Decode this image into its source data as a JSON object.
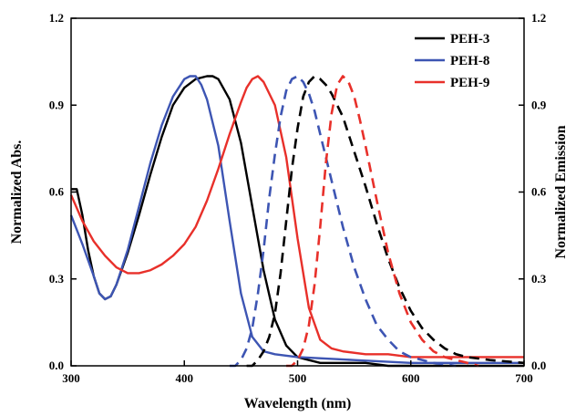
{
  "chart_data": {
    "type": "line",
    "xlabel": "Wavelength (nm)",
    "ylabel_left": "Normalized Abs.",
    "ylabel_right": "Normalized Emission",
    "xlim": [
      300,
      700
    ],
    "ylim": [
      0,
      1.2
    ],
    "xticks": [
      "300",
      "400",
      "500",
      "600",
      "700"
    ],
    "yticks": [
      "0.0",
      "0.3",
      "0.6",
      "0.9",
      "1.2"
    ],
    "legend_position": "top-right",
    "series": [
      {
        "name": "PEH-3",
        "kind": "absorption",
        "color": "#000000",
        "dash": false,
        "x": [
          300,
          305,
          310,
          315,
          320,
          325,
          330,
          335,
          340,
          350,
          360,
          370,
          380,
          390,
          400,
          410,
          420,
          425,
          430,
          440,
          450,
          460,
          470,
          480,
          490,
          500,
          510,
          520,
          540,
          560,
          580,
          600,
          650,
          700
        ],
        "y": [
          0.61,
          0.61,
          0.52,
          0.4,
          0.31,
          0.25,
          0.23,
          0.24,
          0.28,
          0.39,
          0.52,
          0.66,
          0.79,
          0.9,
          0.96,
          0.99,
          1.0,
          1.0,
          0.99,
          0.92,
          0.77,
          0.55,
          0.33,
          0.16,
          0.07,
          0.03,
          0.02,
          0.01,
          0.01,
          0.01,
          0.0,
          0.0,
          0.0,
          0.0
        ]
      },
      {
        "name": "PEH-8",
        "kind": "absorption",
        "color": "#3d55b3",
        "dash": false,
        "x": [
          300,
          310,
          320,
          325,
          330,
          335,
          340,
          350,
          360,
          370,
          380,
          390,
          400,
          405,
          410,
          415,
          420,
          430,
          440,
          450,
          460,
          470,
          480,
          500,
          550,
          600,
          650,
          700
        ],
        "y": [
          0.52,
          0.42,
          0.31,
          0.25,
          0.23,
          0.24,
          0.28,
          0.4,
          0.55,
          0.7,
          0.83,
          0.93,
          0.99,
          1.0,
          1.0,
          0.97,
          0.92,
          0.76,
          0.5,
          0.25,
          0.1,
          0.05,
          0.04,
          0.03,
          0.02,
          0.01,
          0.01,
          0.01
        ]
      },
      {
        "name": "PEH-9",
        "kind": "absorption",
        "color": "#e8302a",
        "dash": false,
        "x": [
          300,
          310,
          320,
          330,
          340,
          350,
          360,
          370,
          380,
          390,
          400,
          410,
          420,
          430,
          440,
          450,
          455,
          460,
          465,
          470,
          480,
          490,
          500,
          510,
          520,
          530,
          540,
          560,
          580,
          600,
          650,
          700
        ],
        "y": [
          0.59,
          0.5,
          0.43,
          0.38,
          0.34,
          0.32,
          0.32,
          0.33,
          0.35,
          0.38,
          0.42,
          0.48,
          0.57,
          0.68,
          0.8,
          0.91,
          0.96,
          0.99,
          1.0,
          0.98,
          0.9,
          0.72,
          0.44,
          0.2,
          0.09,
          0.06,
          0.05,
          0.04,
          0.04,
          0.03,
          0.03,
          0.03
        ]
      },
      {
        "name": "PEH-3 emission",
        "kind": "emission",
        "color": "#000000",
        "dash": true,
        "x": [
          455,
          460,
          465,
          470,
          475,
          480,
          485,
          490,
          495,
          500,
          505,
          510,
          515,
          520,
          525,
          530,
          540,
          550,
          560,
          570,
          580,
          590,
          600,
          610,
          620,
          630,
          640,
          650,
          670,
          700
        ],
        "y": [
          0.0,
          0.0,
          0.02,
          0.05,
          0.1,
          0.18,
          0.32,
          0.5,
          0.68,
          0.82,
          0.93,
          0.98,
          1.0,
          0.99,
          0.97,
          0.94,
          0.86,
          0.74,
          0.62,
          0.49,
          0.37,
          0.27,
          0.19,
          0.13,
          0.09,
          0.06,
          0.04,
          0.03,
          0.02,
          0.01
        ]
      },
      {
        "name": "PEH-8 emission",
        "kind": "emission",
        "color": "#3d55b3",
        "dash": true,
        "x": [
          440,
          445,
          450,
          455,
          460,
          465,
          470,
          475,
          480,
          485,
          490,
          495,
          500,
          505,
          510,
          515,
          520,
          530,
          540,
          550,
          560,
          570,
          580,
          590,
          600,
          620,
          640
        ],
        "y": [
          0.0,
          0.0,
          0.02,
          0.06,
          0.13,
          0.25,
          0.4,
          0.58,
          0.73,
          0.86,
          0.95,
          0.99,
          1.0,
          0.98,
          0.94,
          0.88,
          0.8,
          0.64,
          0.48,
          0.34,
          0.23,
          0.14,
          0.09,
          0.05,
          0.03,
          0.01,
          0.0
        ]
      },
      {
        "name": "PEH-9 emission",
        "kind": "emission",
        "color": "#e8302a",
        "dash": true,
        "x": [
          490,
          495,
          500,
          505,
          510,
          515,
          520,
          525,
          530,
          535,
          540,
          545,
          550,
          555,
          560,
          570,
          580,
          590,
          600,
          610,
          620,
          630,
          640,
          650,
          660
        ],
        "y": [
          0.0,
          0.0,
          0.02,
          0.06,
          0.14,
          0.28,
          0.48,
          0.7,
          0.87,
          0.97,
          1.0,
          0.98,
          0.93,
          0.85,
          0.76,
          0.57,
          0.39,
          0.25,
          0.15,
          0.09,
          0.05,
          0.03,
          0.02,
          0.01,
          0.0
        ]
      }
    ]
  }
}
